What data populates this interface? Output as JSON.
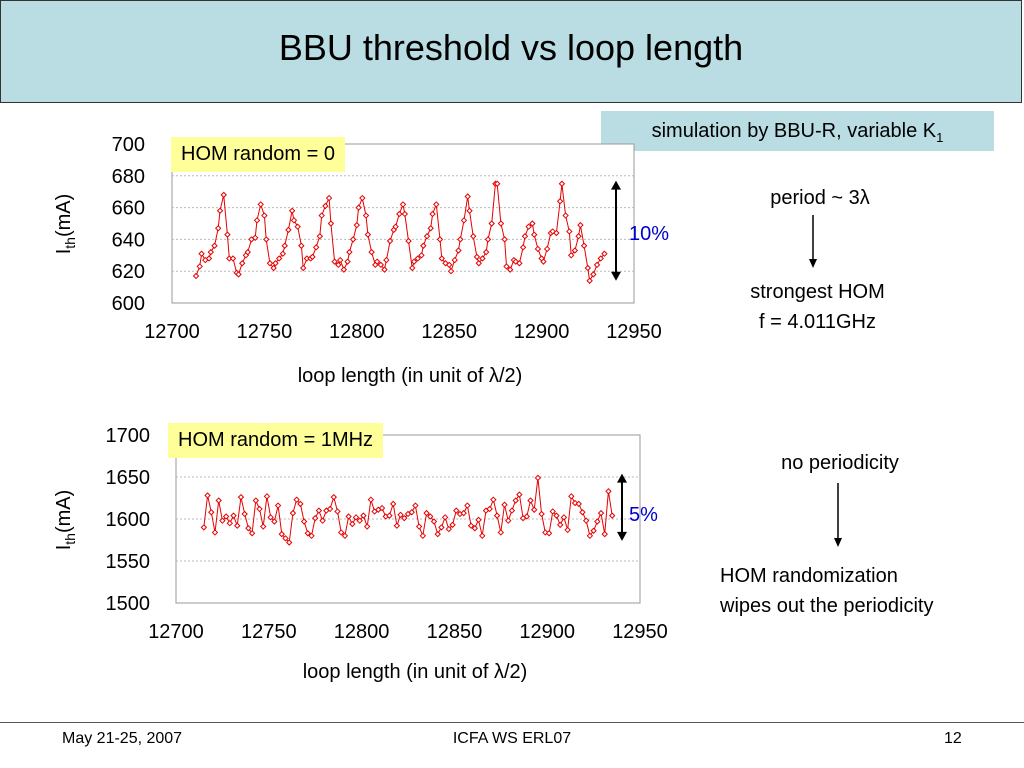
{
  "title": "BBU threshold vs loop length",
  "simulation_note": {
    "text": "simulation by BBU-R, variable K",
    "subscript": "1"
  },
  "annotations": {
    "period": "period ~ 3λ",
    "strongest_hom_line1": "strongest HOM",
    "strongest_hom_line2": "f = 4.011GHz",
    "no_periodicity": "no periodicity",
    "randomization_line1": "HOM randomization",
    "randomization_line2": "wipes out the periodicity"
  },
  "footer": {
    "date": "May 21-25, 2007",
    "event": "ICFA WS ERL07",
    "page": "12"
  },
  "colors": {
    "header_bg": "#b9dde3",
    "label_bg": "#ffff99",
    "series": "#e60000",
    "percent_text": "#0000cc"
  },
  "chart_data": [
    {
      "type": "line",
      "box_label": "HOM random = 0",
      "ylabel_main": "I",
      "ylabel_sub": "th",
      "ylabel_unit": "(mA)",
      "xlabel": "loop length (in unit of λ/2)",
      "xlim": [
        12700,
        12950
      ],
      "ylim": [
        600,
        700
      ],
      "xticks": [
        "12700",
        "12750",
        "12800",
        "12850",
        "12900",
        "12950"
      ],
      "yticks": [
        "600",
        "620",
        "640",
        "660",
        "680",
        "700"
      ],
      "range_annotation": "10%",
      "range_bounds": [
        614,
        677
      ],
      "marker": "diamond",
      "series": [
        {
          "x": [
            12713,
            12715,
            12716,
            12718,
            12720,
            12721,
            12723,
            12725,
            12726,
            12728,
            12730,
            12731,
            12733,
            12735,
            12736,
            12738,
            12740,
            12741,
            12743,
            12745,
            12746,
            12748,
            12750,
            12751,
            12753,
            12755,
            12756,
            12758,
            12760,
            12761,
            12763,
            12765,
            12766,
            12768,
            12770,
            12771,
            12773,
            12775,
            12776,
            12778,
            12780,
            12781,
            12783,
            12785,
            12786,
            12788,
            12790,
            12791,
            12793,
            12795,
            12796,
            12798,
            12800,
            12801,
            12803,
            12805,
            12806,
            12808,
            12810,
            12811,
            12813,
            12815,
            12816,
            12818,
            12820,
            12821,
            12823,
            12825,
            12826,
            12828,
            12830,
            12831,
            12833,
            12835,
            12836,
            12838,
            12840,
            12841,
            12843,
            12845,
            12846,
            12848,
            12850,
            12851,
            12853,
            12855,
            12856,
            12858,
            12860,
            12861,
            12863,
            12865,
            12866,
            12868,
            12870,
            12871,
            12873,
            12875,
            12876,
            12878,
            12880,
            12881,
            12883,
            12885,
            12886,
            12888,
            12890,
            12891,
            12893,
            12895,
            12896,
            12898,
            12900,
            12901,
            12903,
            12905,
            12906,
            12908,
            12910,
            12911,
            12913,
            12915,
            12916,
            12918,
            12920,
            12921,
            12923,
            12925,
            12926,
            12928,
            12930,
            12932,
            12934
          ],
          "y": [
            617,
            623,
            631,
            627,
            628,
            632,
            636,
            647,
            658,
            668,
            643,
            628,
            628,
            619,
            618,
            625,
            630,
            632,
            640,
            641,
            652,
            662,
            655,
            640,
            625,
            622,
            625,
            628,
            631,
            636,
            646,
            658,
            652,
            648,
            636,
            622,
            628,
            628,
            629,
            635,
            642,
            655,
            661,
            666,
            650,
            626,
            624,
            627,
            621,
            626,
            632,
            640,
            649,
            660,
            666,
            655,
            643,
            632,
            624,
            626,
            624,
            621,
            627,
            639,
            646,
            648,
            656,
            662,
            656,
            639,
            622,
            626,
            628,
            630,
            636,
            642,
            647,
            656,
            662,
            640,
            628,
            625,
            624,
            620,
            627,
            633,
            640,
            652,
            667,
            658,
            642,
            629,
            625,
            628,
            632,
            640,
            650,
            675,
            675,
            650,
            640,
            623,
            621,
            627,
            626,
            625,
            635,
            642,
            648,
            650,
            643,
            634,
            628,
            626,
            634,
            644,
            645,
            644,
            664,
            675,
            655,
            645,
            630,
            633,
            642,
            649,
            636,
            622,
            614,
            618,
            624,
            628,
            631
          ]
        }
      ]
    },
    {
      "type": "line",
      "box_label": "HOM random = 1MHz",
      "ylabel_main": "I",
      "ylabel_sub": "th",
      "ylabel_unit": "(mA)",
      "xlabel": "loop length (in unit of λ/2)",
      "xlim": [
        12700,
        12950
      ],
      "ylim": [
        1500,
        1700
      ],
      "xticks": [
        "12700",
        "12750",
        "12800",
        "12850",
        "12900",
        "12950"
      ],
      "yticks": [
        "1500",
        "1550",
        "1600",
        "1650",
        "1700"
      ],
      "range_annotation": "5%",
      "range_bounds": [
        1574,
        1654
      ],
      "marker": "diamond",
      "series": [
        {
          "x": [
            12715,
            12717,
            12719,
            12721,
            12723,
            12725,
            12727,
            12729,
            12731,
            12733,
            12735,
            12737,
            12739,
            12741,
            12743,
            12745,
            12747,
            12749,
            12751,
            12753,
            12755,
            12757,
            12759,
            12761,
            12763,
            12765,
            12767,
            12769,
            12771,
            12773,
            12775,
            12777,
            12779,
            12781,
            12783,
            12785,
            12787,
            12789,
            12791,
            12793,
            12795,
            12797,
            12799,
            12801,
            12803,
            12805,
            12807,
            12809,
            12811,
            12813,
            12815,
            12817,
            12819,
            12821,
            12823,
            12825,
            12827,
            12829,
            12831,
            12833,
            12835,
            12837,
            12839,
            12841,
            12843,
            12845,
            12847,
            12849,
            12851,
            12853,
            12855,
            12857,
            12859,
            12861,
            12863,
            12865,
            12867,
            12869,
            12871,
            12873,
            12875,
            12877,
            12879,
            12881,
            12883,
            12885,
            12887,
            12889,
            12891,
            12893,
            12895,
            12897,
            12899,
            12901,
            12903,
            12905,
            12907,
            12909,
            12911,
            12913,
            12915,
            12917,
            12919,
            12921,
            12923,
            12925,
            12927,
            12929,
            12931,
            12933,
            12935
          ],
          "y": [
            1590,
            1628,
            1608,
            1584,
            1622,
            1598,
            1603,
            1595,
            1604,
            1592,
            1626,
            1606,
            1589,
            1583,
            1622,
            1612,
            1591,
            1627,
            1602,
            1597,
            1616,
            1582,
            1577,
            1572,
            1607,
            1623,
            1618,
            1597,
            1583,
            1580,
            1601,
            1610,
            1598,
            1610,
            1612,
            1626,
            1609,
            1584,
            1580,
            1603,
            1594,
            1602,
            1598,
            1604,
            1591,
            1623,
            1609,
            1611,
            1613,
            1603,
            1604,
            1618,
            1592,
            1605,
            1601,
            1606,
            1608,
            1616,
            1591,
            1580,
            1607,
            1603,
            1597,
            1582,
            1590,
            1602,
            1588,
            1593,
            1610,
            1606,
            1607,
            1616,
            1592,
            1589,
            1599,
            1580,
            1610,
            1612,
            1623,
            1604,
            1584,
            1617,
            1598,
            1610,
            1622,
            1629,
            1601,
            1603,
            1622,
            1611,
            1649,
            1606,
            1584,
            1583,
            1609,
            1604,
            1593,
            1602,
            1587,
            1627,
            1619,
            1618,
            1608,
            1598,
            1580,
            1586,
            1597,
            1607,
            1582,
            1633,
            1604
          ]
        }
      ]
    }
  ]
}
